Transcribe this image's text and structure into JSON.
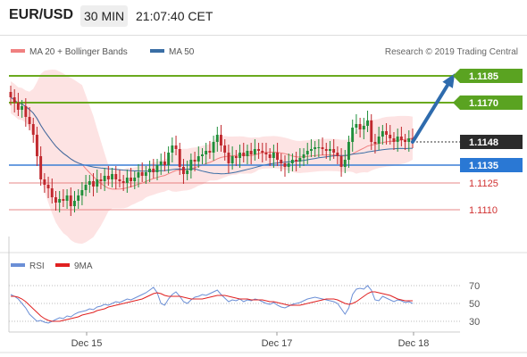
{
  "header": {
    "pair": "EUR/USD",
    "timeframe": "30 MIN",
    "clock": "21:07:40 CET"
  },
  "legend": {
    "ma20_label": "MA 20 + Bollinger Bands",
    "ma50_label": "MA 50",
    "copyright": "Research © 2019 Trading Central",
    "rsi_label": "RSI",
    "ma9_label": "9MA"
  },
  "colors": {
    "ma20": "#f08080",
    "band_fill": "#fde0e0",
    "ma50": "#3a6ea5",
    "resistance": "#6aaa1e",
    "support_blue": "#3a7fd5",
    "support_red": "#e06060",
    "candle_up": "#1f8f3a",
    "candle_down": "#c0282d",
    "arrow": "#2e6bad",
    "rsi": "#6b8fd6",
    "rsi_ma": "#e02020",
    "current_bg": "#2b2b2b",
    "green_tag": "#5aa321",
    "blue_tag": "#2a78d4"
  },
  "chart_data": [
    {
      "type": "candlestick",
      "ylim": [
        1.1085,
        1.1205
      ],
      "x_labels": [
        "Dec 15",
        "Dec 17",
        "Dec 18"
      ],
      "levels": [
        {
          "value": 1.1185,
          "label": "1.1185",
          "kind": "resistance"
        },
        {
          "value": 1.117,
          "label": "1.1170",
          "kind": "resistance"
        },
        {
          "value": 1.1148,
          "label": "1.1148",
          "kind": "current"
        },
        {
          "value": 1.1135,
          "label": "1.1135",
          "kind": "support-blue"
        },
        {
          "value": 1.1125,
          "label": "1.1125",
          "kind": "support-red"
        },
        {
          "value": 1.111,
          "label": "1.1110",
          "kind": "support-red"
        }
      ],
      "close": [
        1.1173,
        1.117,
        1.1166,
        1.1168,
        1.1162,
        1.1158,
        1.1152,
        1.114,
        1.1127,
        1.1124,
        1.1122,
        1.1117,
        1.1114,
        1.1116,
        1.1115,
        1.1118,
        1.1112,
        1.1115,
        1.1118,
        1.1121,
        1.1124,
        1.1126,
        1.1123,
        1.1127,
        1.1126,
        1.1129,
        1.1127,
        1.113,
        1.1127,
        1.1126,
        1.1125,
        1.1128,
        1.1126,
        1.1128,
        1.1131,
        1.1129,
        1.1131,
        1.1133,
        1.1131,
        1.1135,
        1.1137,
        1.1135,
        1.1142,
        1.1146,
        1.1144,
        1.1134,
        1.113,
        1.1132,
        1.1138,
        1.1137,
        1.114,
        1.1141,
        1.1143,
        1.1142,
        1.1148,
        1.1152,
        1.1146,
        1.1142,
        1.1136,
        1.114,
        1.1139,
        1.1142,
        1.114,
        1.1143,
        1.1141,
        1.1144,
        1.1143,
        1.1142,
        1.1141,
        1.1139,
        1.1142,
        1.1138,
        1.1136,
        1.1134,
        1.1136,
        1.1138,
        1.1137,
        1.1139,
        1.1141,
        1.1143,
        1.1144,
        1.1145,
        1.1145,
        1.1144,
        1.1143,
        1.1144,
        1.1142,
        1.114,
        1.1134,
        1.1138,
        1.1148,
        1.1156,
        1.1158,
        1.1155,
        1.1157,
        1.116,
        1.1148,
        1.1147,
        1.1151,
        1.1154,
        1.1152,
        1.115,
        1.1148,
        1.1151,
        1.1149,
        1.1148,
        1.115,
        1.1148
      ]
    },
    {
      "type": "line",
      "title": "RSI",
      "ylim": [
        20,
        80
      ],
      "y_ticks": [
        70,
        50,
        30
      ],
      "series": [
        {
          "name": "RSI",
          "values": [
            60,
            58,
            55,
            50,
            45,
            38,
            34,
            30,
            31,
            29,
            28,
            30,
            32,
            34,
            33,
            36,
            35,
            38,
            40,
            41,
            42,
            44,
            43,
            46,
            47,
            49,
            48,
            50,
            52,
            51,
            53,
            55,
            54,
            56,
            58,
            60,
            62,
            65,
            68,
            62,
            50,
            48,
            55,
            60,
            63,
            58,
            52,
            50,
            54,
            57,
            58,
            60,
            59,
            61,
            63,
            65,
            60,
            56,
            52,
            54,
            53,
            55,
            52,
            54,
            53,
            55,
            54,
            52,
            50,
            49,
            51,
            48,
            46,
            45,
            47,
            49,
            50,
            51,
            53,
            55,
            56,
            57,
            56,
            55,
            54,
            53,
            52,
            50,
            44,
            38,
            45,
            60,
            66,
            67,
            66,
            70,
            65,
            54,
            53,
            58,
            56,
            54,
            52,
            54,
            53,
            51,
            52,
            50
          ]
        },
        {
          "name": "9MA",
          "values": [
            58,
            58,
            57,
            55,
            52,
            48,
            44,
            40,
            36,
            33,
            31,
            30,
            30,
            30,
            31,
            32,
            33,
            34,
            35,
            37,
            38,
            39,
            40,
            42,
            43,
            44,
            46,
            47,
            48,
            49,
            50,
            51,
            52,
            53,
            54,
            55,
            57,
            59,
            61,
            62,
            61,
            59,
            58,
            58,
            58,
            58,
            57,
            56,
            55,
            55,
            55,
            55,
            56,
            57,
            58,
            59,
            59,
            59,
            58,
            57,
            56,
            55,
            55,
            55,
            54,
            54,
            54,
            54,
            53,
            52,
            52,
            51,
            50,
            49,
            48,
            48,
            48,
            48,
            49,
            50,
            51,
            52,
            53,
            54,
            55,
            55,
            55,
            54,
            52,
            50,
            49,
            50,
            52,
            55,
            58,
            61,
            63,
            63,
            62,
            61,
            60,
            59,
            57,
            55,
            54,
            53,
            53,
            53
          ]
        }
      ]
    }
  ]
}
